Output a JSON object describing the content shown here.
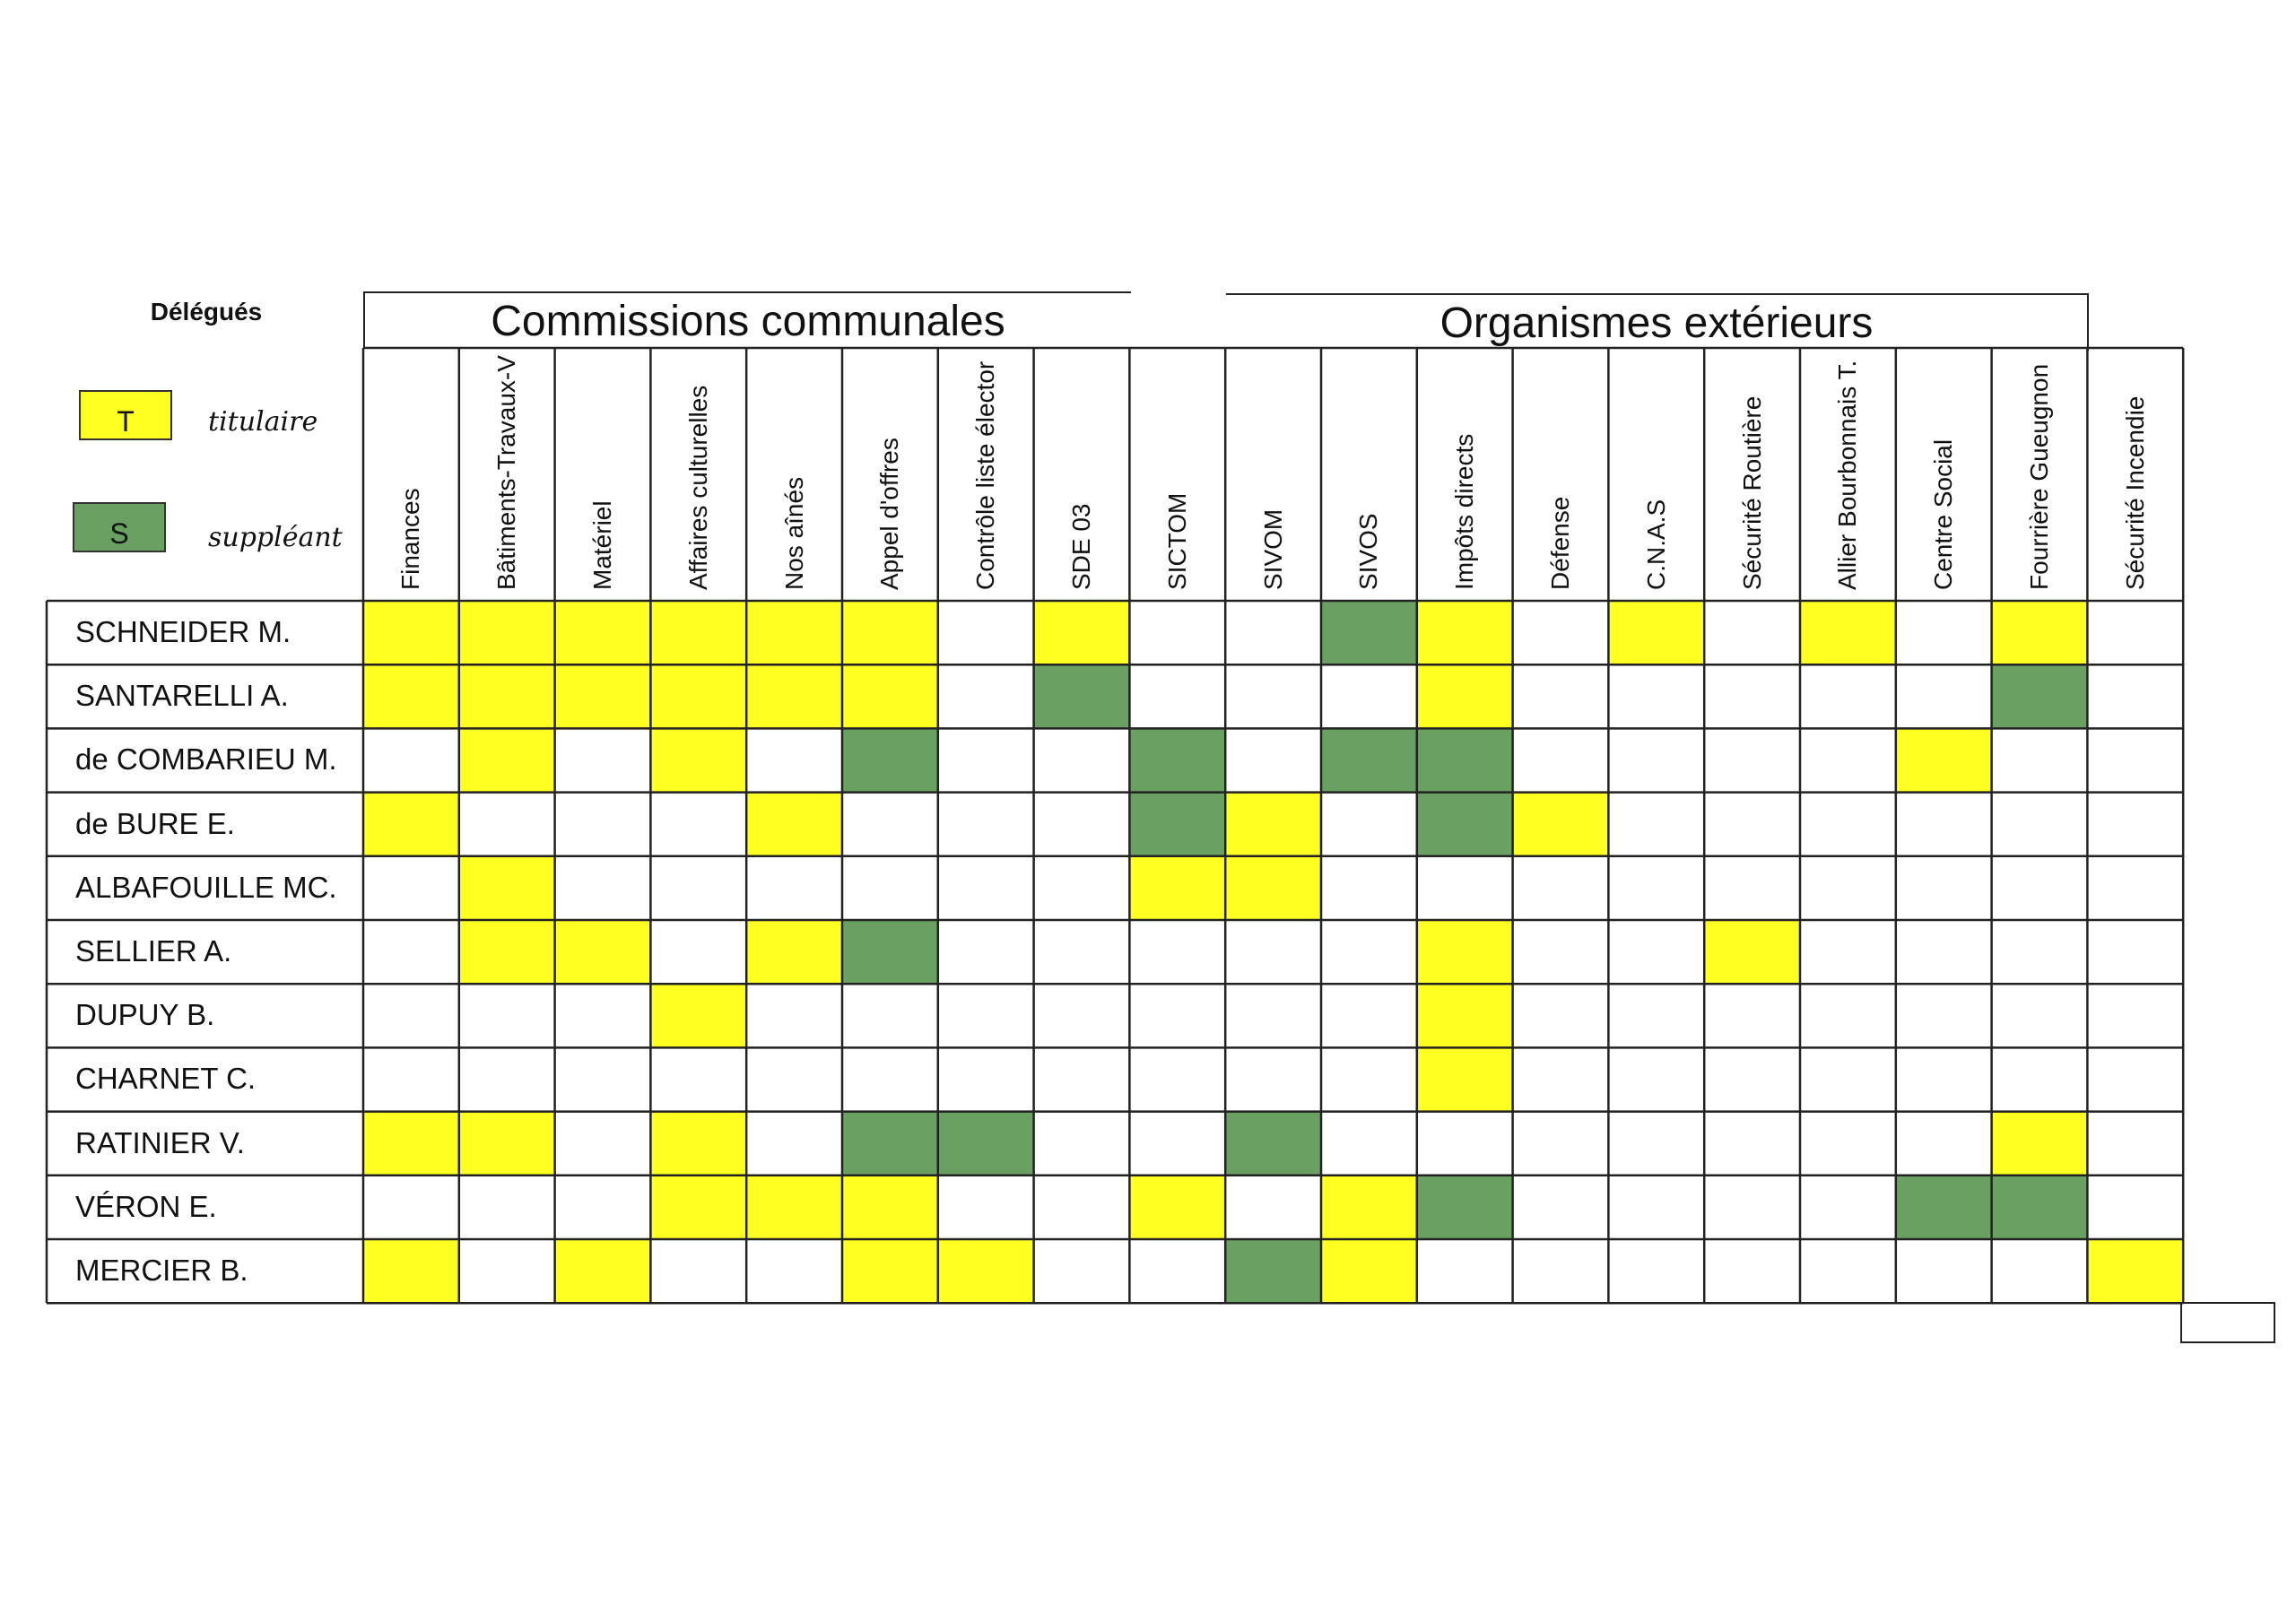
{
  "legend": {
    "title": "Délégués",
    "titulaire": {
      "code": "T",
      "label": "titulaire",
      "color": "#ffff22"
    },
    "suppleant": {
      "code": "S",
      "label": "suppléant",
      "color": "#6aa163"
    }
  },
  "groups": {
    "communales": "Commissions communales",
    "exterieurs": "Organismes extérieurs"
  },
  "columns": [
    "Finances",
    "Bâtiments-Travaux-V",
    "Matériel",
    "Affaires culturelles",
    "Nos aînés",
    "Appel d'offres",
    "Contrôle liste élector",
    "SDE 03",
    "SICTOM",
    "SIVOM",
    "SIVOS",
    "Impôts directs",
    "Défense",
    "C.N.A.S",
    "Sécurité Routière",
    "Allier Bourbonnais T.",
    "Centre Social",
    "Fourrière Gueugnon",
    "Sécurité Incendie"
  ],
  "rows": [
    {
      "name": "SCHNEIDER M.",
      "cells": [
        "T",
        "T",
        "T",
        "T",
        "T",
        "T",
        "",
        "T",
        "",
        "",
        "S",
        "T",
        "",
        "T",
        "",
        "T",
        "",
        "T",
        ""
      ]
    },
    {
      "name": "SANTARELLI A.",
      "cells": [
        "T",
        "T",
        "T",
        "T",
        "T",
        "T",
        "",
        "S",
        "",
        "",
        "",
        "T",
        "",
        "",
        "",
        "",
        "",
        "S",
        ""
      ]
    },
    {
      "name": "de COMBARIEU M.",
      "cells": [
        "",
        "T",
        "",
        "T",
        "",
        "S",
        "",
        "",
        "S",
        "",
        "S",
        "S",
        "",
        "",
        "",
        "",
        "T",
        "",
        ""
      ]
    },
    {
      "name": "de BURE E.",
      "cells": [
        "T",
        "",
        "",
        "",
        "T",
        "",
        "",
        "",
        "S",
        "T",
        "",
        "S",
        "T",
        "",
        "",
        "",
        "",
        "",
        ""
      ]
    },
    {
      "name": "ALBAFOUILLE MC.",
      "cells": [
        "",
        "T",
        "",
        "",
        "",
        "",
        "",
        "",
        "T",
        "T",
        "",
        "",
        "",
        "",
        "",
        "",
        "",
        "",
        ""
      ]
    },
    {
      "name": "SELLIER A.",
      "cells": [
        "",
        "T",
        "T",
        "",
        "T",
        "S",
        "",
        "",
        "",
        "",
        "",
        "T",
        "",
        "",
        "T",
        "",
        "",
        "",
        ""
      ]
    },
    {
      "name": "DUPUY B.",
      "cells": [
        "",
        "",
        "",
        "T",
        "",
        "",
        "",
        "",
        "",
        "",
        "",
        "T",
        "",
        "",
        "",
        "",
        "",
        "",
        ""
      ]
    },
    {
      "name": "CHARNET C.",
      "cells": [
        "",
        "",
        "",
        "",
        "",
        "",
        "",
        "",
        "",
        "",
        "",
        "T",
        "",
        "",
        "",
        "",
        "",
        "",
        ""
      ]
    },
    {
      "name": "RATINIER V.",
      "cells": [
        "T",
        "T",
        "",
        "T",
        "",
        "S",
        "S",
        "",
        "",
        "S",
        "",
        "",
        "",
        "",
        "",
        "",
        "",
        "T",
        ""
      ]
    },
    {
      "name": "VÉRON E.",
      "cells": [
        "",
        "",
        "",
        "T",
        "T",
        "T",
        "",
        "",
        "T",
        "",
        "T",
        "S",
        "",
        "",
        "",
        "",
        "S",
        "S",
        ""
      ]
    },
    {
      "name": "MERCIER B.",
      "cells": [
        "T",
        "",
        "T",
        "",
        "",
        "T",
        "T",
        "",
        "",
        "S",
        "T",
        "",
        "",
        "",
        "",
        "",
        "",
        "",
        "T"
      ]
    }
  ]
}
